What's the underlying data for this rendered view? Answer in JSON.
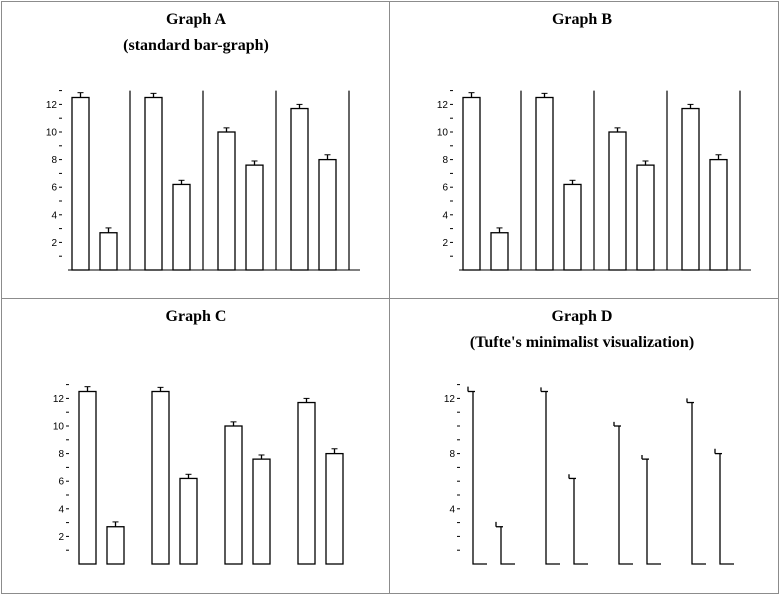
{
  "chart_data": [
    {
      "type": "bar",
      "title": "Graph A",
      "subtitle": "(standard bar-graph)",
      "style": "standard",
      "groups": 4,
      "values": [
        12.5,
        2.7,
        12.5,
        6.2,
        10.0,
        7.6,
        11.7,
        8.0
      ],
      "error": [
        0.35,
        0.35,
        0.3,
        0.3,
        0.3,
        0.3,
        0.3,
        0.35
      ],
      "yticks": [
        "12",
        "10",
        "8",
        "6",
        "4",
        "2"
      ],
      "ylim": [
        0,
        13
      ],
      "group_dividers": true,
      "axis_baseline": true
    },
    {
      "type": "bar",
      "title": "Graph B",
      "subtitle": "",
      "style": "standard",
      "groups": 4,
      "values": [
        12.5,
        2.7,
        12.5,
        6.2,
        10.0,
        7.6,
        11.7,
        8.0
      ],
      "error": [
        0.35,
        0.35,
        0.3,
        0.3,
        0.3,
        0.3,
        0.3,
        0.35
      ],
      "yticks": [
        "12",
        "10",
        "8",
        "6",
        "4",
        "2"
      ],
      "ylim": [
        0,
        13
      ],
      "group_dividers": true,
      "axis_baseline": true
    },
    {
      "type": "bar",
      "title": "Graph C",
      "subtitle": "",
      "style": "standard",
      "groups": 4,
      "values": [
        12.5,
        2.7,
        12.5,
        6.2,
        10.0,
        7.6,
        11.7,
        8.0
      ],
      "error": [
        0.35,
        0.35,
        0.3,
        0.3,
        0.3,
        0.3,
        0.3,
        0.35
      ],
      "yticks": [
        "12",
        "10",
        "8",
        "6",
        "4",
        "2"
      ],
      "ylim": [
        0,
        13
      ],
      "group_dividers": false,
      "axis_baseline": false
    },
    {
      "type": "bar",
      "title": "Graph D",
      "subtitle": "(Tufte's minimalist visualization)",
      "style": "minimal",
      "groups": 4,
      "values": [
        12.5,
        2.7,
        12.5,
        6.2,
        10.0,
        7.6,
        11.7,
        8.0
      ],
      "error": [
        0.35,
        0.35,
        0.3,
        0.3,
        0.3,
        0.3,
        0.3,
        0.35
      ],
      "yticks": [
        "12",
        "8",
        "4"
      ],
      "ylim": [
        0,
        13
      ],
      "group_dividers": false,
      "axis_baseline": false
    }
  ]
}
